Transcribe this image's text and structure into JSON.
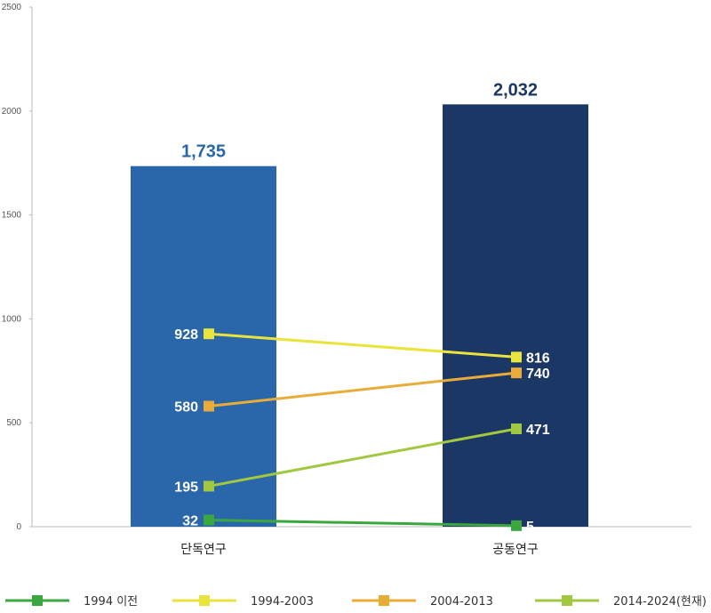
{
  "chart_data": {
    "type": "bar",
    "categories": [
      "단독연구",
      "공동연구"
    ],
    "bars": {
      "values": [
        1735,
        2032
      ],
      "labels": [
        "1,735",
        "2,032"
      ],
      "colors": [
        "#2a67aa",
        "#1b3765"
      ]
    },
    "ylim": [
      0,
      2500
    ],
    "yticks": [
      0,
      500,
      1000,
      1500,
      2000,
      2500
    ],
    "grid": false,
    "legend": "bottom",
    "series": [
      {
        "name": "1994 이전",
        "type": "line",
        "values": [
          32,
          5
        ],
        "labels": [
          "32",
          "5"
        ],
        "color": "#3ba83f"
      },
      {
        "name": "1994-2003",
        "type": "line",
        "values": [
          928,
          816
        ],
        "labels": [
          "928",
          "816"
        ],
        "color": "#e9e43c"
      },
      {
        "name": "2004-2013",
        "type": "line",
        "values": [
          580,
          740
        ],
        "labels": [
          "580",
          "740"
        ],
        "color": "#e9ac38"
      },
      {
        "name": "2014-2024(현재)",
        "type": "line",
        "values": [
          195,
          471
        ],
        "labels": [
          "195",
          "471"
        ],
        "color": "#a2c83f"
      }
    ]
  }
}
